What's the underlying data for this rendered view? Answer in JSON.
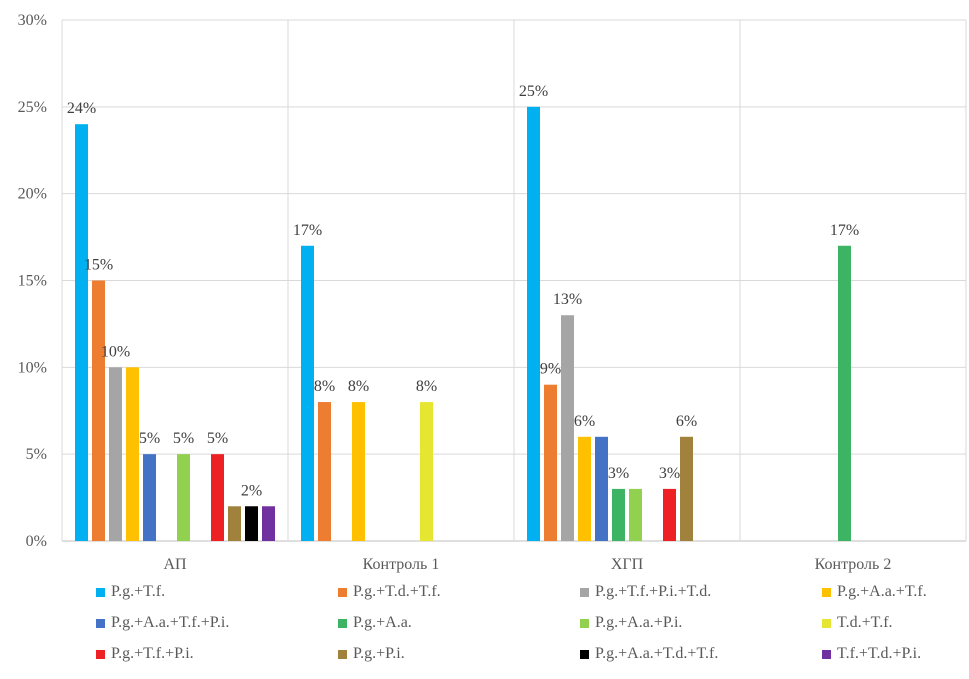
{
  "chart_data": {
    "type": "bar",
    "ylim": [
      0,
      30
    ],
    "y_ticks": [
      "0%",
      "5%",
      "10%",
      "15%",
      "20%",
      "25%",
      "30%"
    ],
    "grid": true,
    "legend_position": "bottom",
    "categories": [
      "АП",
      "Контроль 1",
      "ХГП",
      "Контроль 2"
    ],
    "series": [
      {
        "name": "P.g.+T.f.",
        "color": "#00B0F0",
        "values": [
          24,
          17,
          25,
          null
        ],
        "labels": [
          "24%",
          "17%",
          "25%",
          ""
        ]
      },
      {
        "name": "P.g.+T.d.+T.f.",
        "color": "#ED7D31",
        "values": [
          15,
          8,
          9,
          null
        ],
        "labels": [
          "15%",
          "8%",
          "9%",
          ""
        ]
      },
      {
        "name": "P.g.+T.f.+P.i.+T.d.",
        "color": "#A5A5A5",
        "values": [
          10,
          null,
          13,
          null
        ],
        "labels": [
          "10%",
          "",
          "13%",
          ""
        ]
      },
      {
        "name": "P.g.+A.a.+T.f.",
        "color": "#FFC000",
        "values": [
          10,
          8,
          6,
          null
        ],
        "labels": [
          "",
          "8%",
          "6%",
          ""
        ]
      },
      {
        "name": "P.g.+A.a.+T.f.+P.i.",
        "color": "#4472C4",
        "values": [
          5,
          null,
          6,
          null
        ],
        "labels": [
          "5%",
          "",
          "",
          ""
        ]
      },
      {
        "name": "P.g.+A.a.",
        "color": "#3CB464",
        "values": [
          null,
          null,
          3,
          17
        ],
        "labels": [
          "",
          "",
          "3%",
          "17%"
        ]
      },
      {
        "name": "P.g.+A.a.+P.i.",
        "color": "#92D050",
        "values": [
          5,
          null,
          3,
          null
        ],
        "labels": [
          "5%",
          "",
          "",
          ""
        ]
      },
      {
        "name": "T.d.+T.f.",
        "color": "#E6E632",
        "values": [
          null,
          8,
          null,
          null
        ],
        "labels": [
          "",
          "8%",
          "",
          ""
        ]
      },
      {
        "name": "P.g.+T.f.+P.i.",
        "color": "#ED2024",
        "values": [
          5,
          null,
          3,
          null
        ],
        "labels": [
          "5%",
          "",
          "3%",
          ""
        ]
      },
      {
        "name": "P.g.+P.i.",
        "color": "#A1823C",
        "values": [
          2,
          null,
          6,
          null
        ],
        "labels": [
          "",
          "",
          "6%",
          ""
        ]
      },
      {
        "name": "P.g.+A.a.+T.d.+T.f.",
        "color": "#000000",
        "values": [
          2,
          null,
          null,
          null
        ],
        "labels": [
          "2%",
          "",
          "",
          ""
        ]
      },
      {
        "name": "T.f.+T.d.+P.i.",
        "color": "#7030A0",
        "values": [
          2,
          null,
          null,
          null
        ],
        "labels": [
          "",
          "",
          "",
          ""
        ]
      }
    ]
  }
}
